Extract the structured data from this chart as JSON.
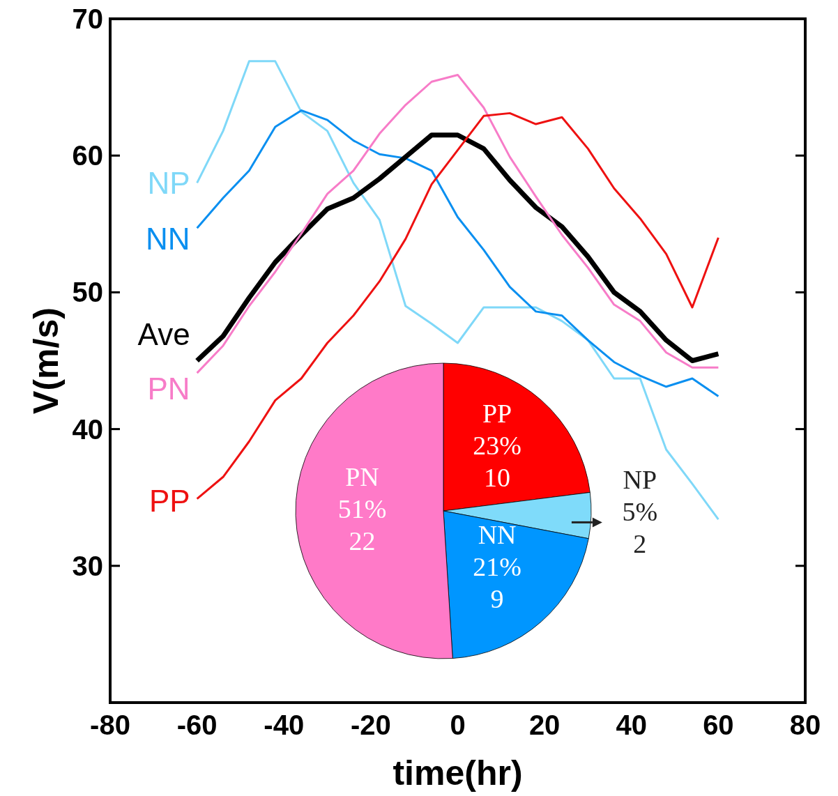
{
  "chart_data": [
    {
      "type": "line",
      "xlabel": "time(hr)",
      "ylabel": "V(m/s)",
      "xlim": [
        -80,
        80
      ],
      "xticks": [
        -80,
        -60,
        -40,
        -20,
        0,
        20,
        40,
        60,
        80
      ],
      "ylim": [
        20,
        70
      ],
      "yticks": [
        30,
        40,
        50,
        60,
        70
      ],
      "grid": false,
      "marker": "none",
      "line_style": "solid",
      "x": [
        -60,
        -54,
        -48,
        -42,
        -36,
        -30,
        -24,
        -18,
        -12,
        -6,
        0,
        6,
        12,
        18,
        24,
        30,
        36,
        42,
        48,
        54,
        60
      ],
      "series": [
        {
          "name": "NP",
          "color": "#7fd8f8",
          "values": [
            58.0,
            61.8,
            66.9,
            66.9,
            63.2,
            61.8,
            58.0,
            55.3,
            49.0,
            47.7,
            46.3,
            48.9,
            48.9,
            48.9,
            47.9,
            46.5,
            43.7,
            43.7,
            38.5,
            36.0,
            33.4
          ]
        },
        {
          "name": "NN",
          "color": "#0a8ff0",
          "values": [
            54.7,
            56.9,
            58.9,
            62.1,
            63.3,
            62.6,
            61.1,
            60.1,
            59.8,
            58.9,
            55.5,
            53.1,
            50.4,
            48.6,
            48.3,
            46.5,
            44.9,
            43.9,
            43.1,
            43.7,
            42.4
          ]
        },
        {
          "name": "Ave",
          "color": "#000000",
          "values": [
            45.0,
            46.8,
            49.6,
            52.2,
            54.2,
            56.1,
            56.9,
            58.3,
            59.9,
            61.5,
            61.5,
            60.5,
            58.2,
            56.2,
            54.8,
            52.6,
            50.0,
            48.6,
            46.5,
            45.0,
            45.5
          ]
        },
        {
          "name": "PN",
          "color": "#f77cc8",
          "values": [
            44.1,
            46.1,
            49.0,
            51.5,
            54.3,
            57.2,
            58.9,
            61.6,
            63.7,
            65.4,
            65.9,
            63.5,
            59.9,
            57.0,
            54.2,
            51.8,
            49.1,
            47.9,
            45.6,
            44.5,
            44.5
          ]
        },
        {
          "name": "PP",
          "color": "#ee1111",
          "values": [
            34.9,
            36.5,
            39.1,
            42.1,
            43.7,
            46.3,
            48.3,
            50.8,
            53.9,
            57.9,
            60.4,
            62.9,
            63.1,
            62.3,
            62.8,
            60.5,
            57.6,
            55.4,
            52.8,
            48.9,
            54.0
          ]
        }
      ]
    },
    {
      "type": "pie",
      "categories": [
        "PP",
        "NP",
        "NN",
        "PN"
      ],
      "values": [
        23,
        5,
        21,
        51
      ],
      "value_labels": [
        "23%\n10",
        "5%\n2",
        "21%\n9",
        "51%\n22"
      ],
      "colors": [
        "#ff0000",
        "#7fdbfa",
        "#0096ff",
        "#ff7ac8"
      ]
    }
  ]
}
